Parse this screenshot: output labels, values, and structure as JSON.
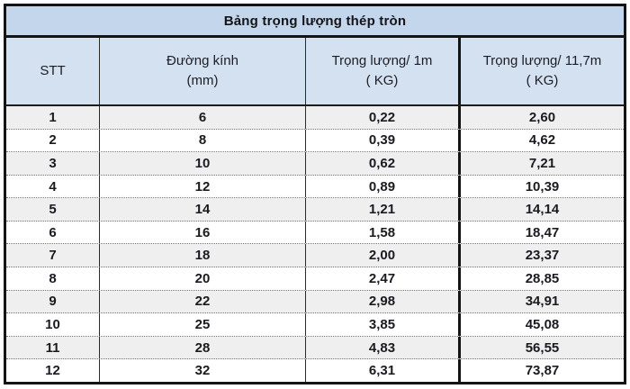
{
  "table": {
    "title": "Bảng trọng lượng thép tròn",
    "columns": [
      {
        "line1": "STT",
        "line2": ""
      },
      {
        "line1": "Đường kính",
        "line2": "(mm)"
      },
      {
        "line1": "Trọng lượng/ 1m",
        "line2": "( KG)"
      },
      {
        "line1": "Trọng lượng/ 11,7m",
        "line2": "( KG)"
      }
    ],
    "rows": [
      [
        "1",
        "6",
        "0,22",
        "2,60"
      ],
      [
        "2",
        "8",
        "0,39",
        "4,62"
      ],
      [
        "3",
        "10",
        "0,62",
        "7,21"
      ],
      [
        "4",
        "12",
        "0,89",
        "10,39"
      ],
      [
        "5",
        "14",
        "1,21",
        "14,14"
      ],
      [
        "6",
        "16",
        "1,58",
        "18,47"
      ],
      [
        "7",
        "18",
        "2,00",
        "23,37"
      ],
      [
        "8",
        "20",
        "2,47",
        "28,85"
      ],
      [
        "9",
        "22",
        "2,98",
        "34,91"
      ],
      [
        "10",
        "25",
        "3,85",
        "45,08"
      ],
      [
        "11",
        "28",
        "4,83",
        "56,55"
      ],
      [
        "12",
        "32",
        "6,31",
        "73,87"
      ]
    ],
    "colors": {
      "title_bg": "#c3d6ec",
      "header_bg": "#d4e1f1",
      "row_alt_bg": "#efefef",
      "row_bg": "#ffffff",
      "border": "#141414",
      "text": "#1a1a20"
    }
  }
}
